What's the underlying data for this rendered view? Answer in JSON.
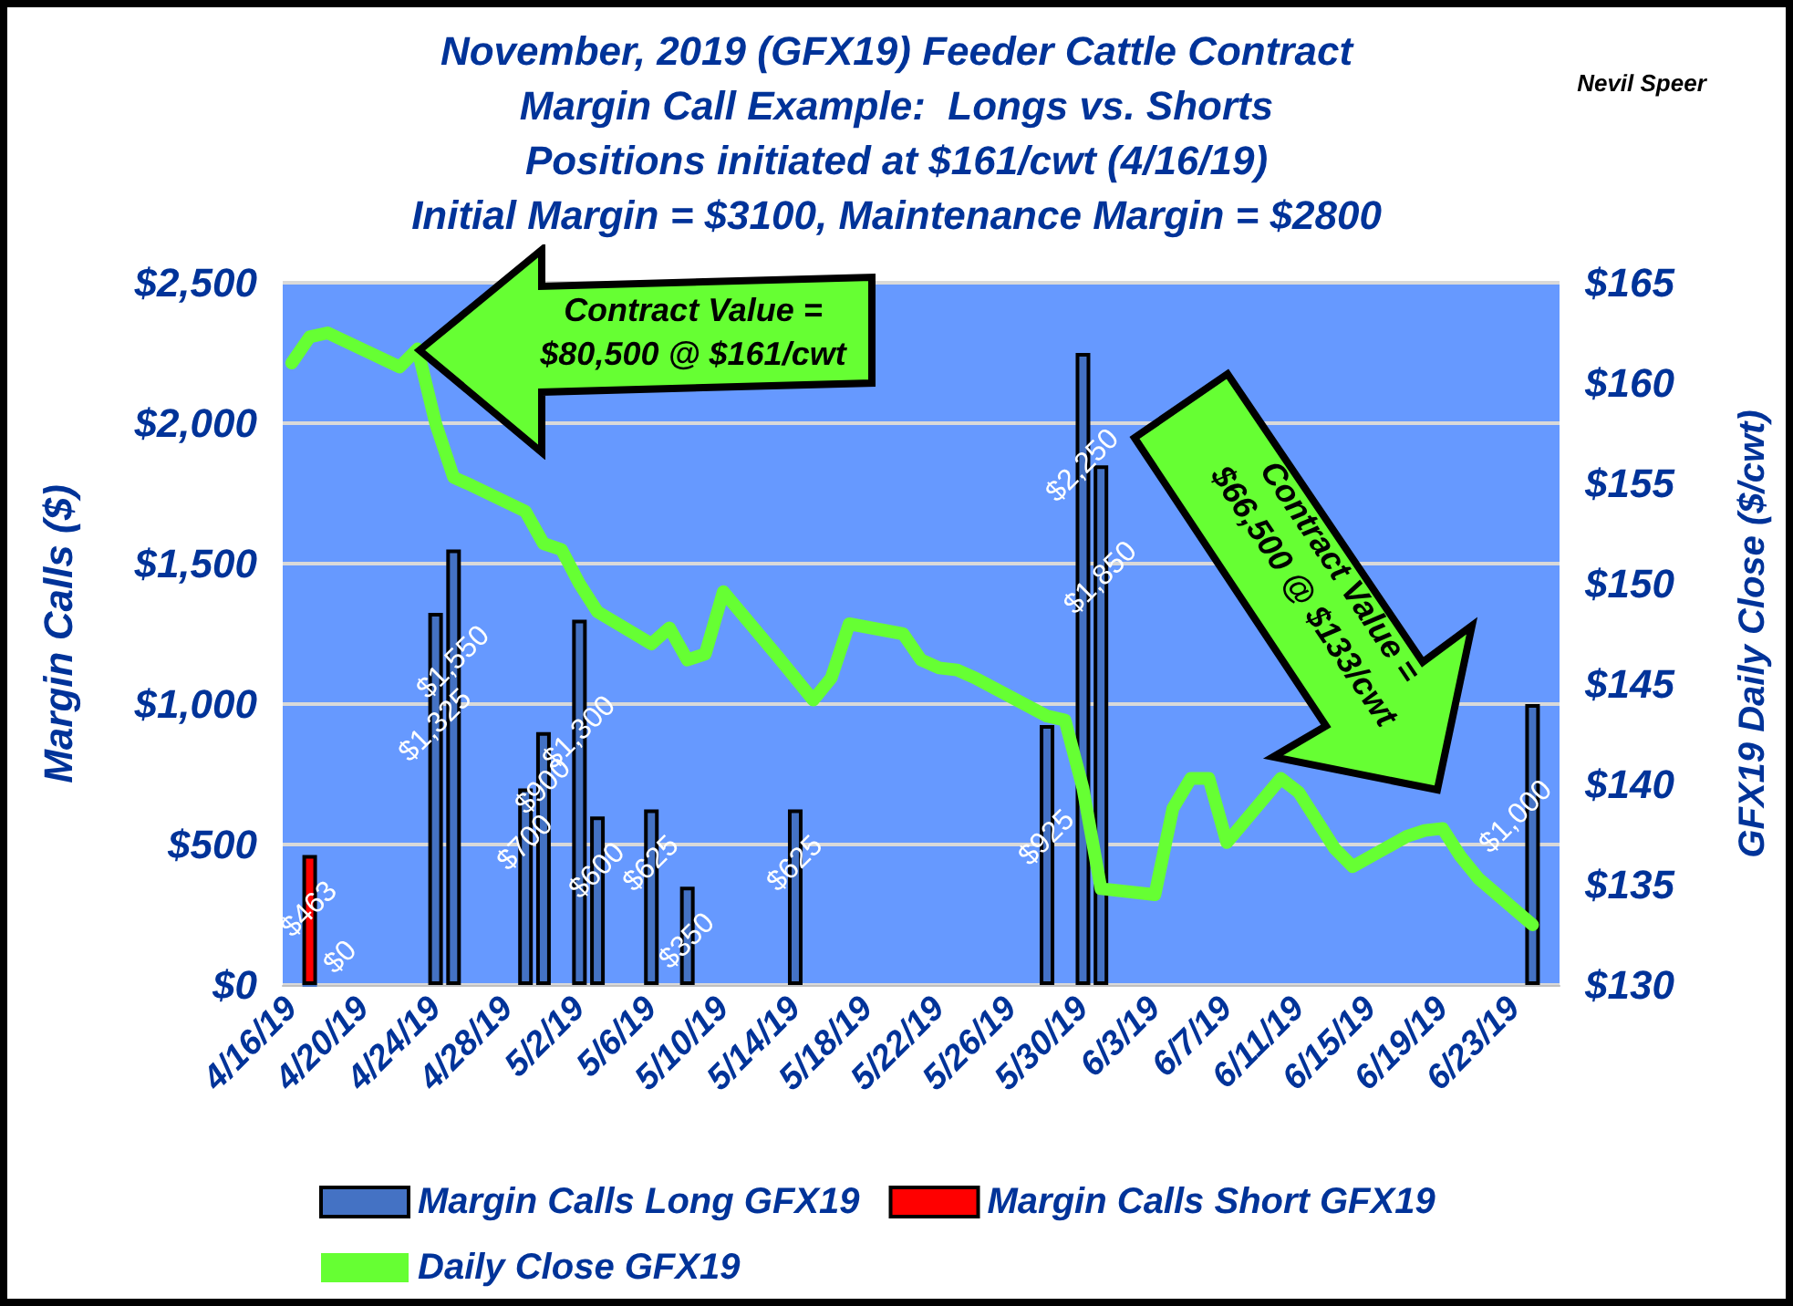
{
  "chart_data": {
    "type": "bar",
    "title": "November, 2019 (GFX19) Feeder Cattle Contract\nMargin Call Example:  Longs vs. Shorts\nPositions initiated at $161/cwt (4/16/19)\nInitial Margin = $3100, Maintenance Margin = $2800",
    "ylabel": "Margin Calls ($)",
    "y2label": "GFX19 Daily Close ($/cwt)",
    "annotations": [
      "Nevil Speer",
      "Contract Value =\n$80,500 @ $161/cwt",
      "Contract Value =\n$66,500 @ $133/cwt"
    ],
    "xlim": [
      "2019-04-15T12:00",
      "2019-06-25T12:00"
    ],
    "xticks": [
      {
        "value": "2019-04-16",
        "label": "4/16/19"
      },
      {
        "value": "2019-04-20",
        "label": "4/20/19"
      },
      {
        "value": "2019-04-24",
        "label": "4/24/19"
      },
      {
        "value": "2019-04-28",
        "label": "4/28/19"
      },
      {
        "value": "2019-05-02",
        "label": "5/2/19"
      },
      {
        "value": "2019-05-06",
        "label": "5/6/19"
      },
      {
        "value": "2019-05-10",
        "label": "5/10/19"
      },
      {
        "value": "2019-05-14",
        "label": "5/14/19"
      },
      {
        "value": "2019-05-18",
        "label": "5/18/19"
      },
      {
        "value": "2019-05-22",
        "label": "5/22/19"
      },
      {
        "value": "2019-05-26",
        "label": "5/26/19"
      },
      {
        "value": "2019-05-30",
        "label": "5/30/19"
      },
      {
        "value": "2019-06-03",
        "label": "6/3/19"
      },
      {
        "value": "2019-06-07",
        "label": "6/7/19"
      },
      {
        "value": "2019-06-11",
        "label": "6/11/19"
      },
      {
        "value": "2019-06-15",
        "label": "6/15/19"
      },
      {
        "value": "2019-06-19",
        "label": "6/19/19"
      },
      {
        "value": "2019-06-23",
        "label": "6/23/19"
      }
    ],
    "ylim": [
      0,
      2500
    ],
    "yticks": [
      {
        "value": 0,
        "label": "$0"
      },
      {
        "value": 500,
        "label": "$500"
      },
      {
        "value": 1000,
        "label": "$1,000"
      },
      {
        "value": 1500,
        "label": "$1,500"
      },
      {
        "value": 2000,
        "label": "$2,000"
      },
      {
        "value": 2500,
        "label": "$2,500"
      }
    ],
    "y2lim": [
      130,
      165
    ],
    "y2ticks": [
      {
        "value": 130,
        "label": "$130"
      },
      {
        "value": 135,
        "label": "$135"
      },
      {
        "value": 140,
        "label": "$140"
      },
      {
        "value": 145,
        "label": "$145"
      },
      {
        "value": 150,
        "label": "$150"
      },
      {
        "value": 155,
        "label": "$155"
      },
      {
        "value": 160,
        "label": "$160"
      },
      {
        "value": 165,
        "label": "$165"
      }
    ],
    "grid": "y",
    "legend": "bottom",
    "series": [
      {
        "name": "Margin Calls Long GFX19",
        "color": "#4472c4",
        "x": [
          "2019-04-17",
          "2019-04-24",
          "2019-04-25",
          "2019-04-29",
          "2019-04-30",
          "2019-05-02",
          "2019-05-03",
          "2019-05-06",
          "2019-05-08",
          "2019-05-14",
          "2019-05-28",
          "2019-05-30",
          "2019-05-31",
          "2019-06-24"
        ],
        "values": [
          0,
          1325,
          1550,
          700,
          900,
          1300,
          600,
          625,
          350,
          625,
          925,
          2250,
          1850,
          1000
        ],
        "value_labels": [
          "$0",
          "$1,325",
          "$1,550",
          "$700",
          "$900",
          "$1,300",
          "$600",
          "$625",
          "$350",
          "$625",
          "$925",
          "$2,250",
          "$1,850",
          "$1,000"
        ]
      },
      {
        "name": "Margin Calls Short GFX19",
        "color": "#ff0000",
        "x": [
          "2019-04-17"
        ],
        "values": [
          463
        ],
        "value_labels": [
          "$463"
        ]
      },
      {
        "name": "Daily Close GFX19",
        "type": "line",
        "axis": "y2",
        "color": "#66ff33",
        "marker": "none",
        "line_style": "solid",
        "x": [
          "2019-04-16",
          "2019-04-17",
          "2019-04-18",
          "2019-04-22",
          "2019-04-23",
          "2019-04-24",
          "2019-04-25",
          "2019-04-26",
          "2019-04-29",
          "2019-04-30",
          "2019-05-01",
          "2019-05-02",
          "2019-05-03",
          "2019-05-06",
          "2019-05-07",
          "2019-05-08",
          "2019-05-09",
          "2019-05-10",
          "2019-05-13",
          "2019-05-14",
          "2019-05-15",
          "2019-05-16",
          "2019-05-17",
          "2019-05-20",
          "2019-05-21",
          "2019-05-22",
          "2019-05-23",
          "2019-05-24",
          "2019-05-28",
          "2019-05-29",
          "2019-05-30",
          "2019-05-31",
          "2019-06-03",
          "2019-06-04",
          "2019-06-05",
          "2019-06-06",
          "2019-06-07",
          "2019-06-10",
          "2019-06-11",
          "2019-06-12",
          "2019-06-13",
          "2019-06-14",
          "2019-06-17",
          "2019-06-18",
          "2019-06-19",
          "2019-06-20",
          "2019-06-21",
          "2019-06-24"
        ],
        "values": [
          161,
          162.3,
          162.5,
          160.8,
          161.7,
          158.0,
          155.3,
          154.9,
          153.6,
          152.0,
          151.7,
          150.0,
          148.6,
          147.0,
          147.8,
          146.2,
          146.5,
          149.6,
          146.4,
          145.3,
          144.2,
          145.3,
          148.0,
          147.5,
          146.2,
          145.8,
          145.7,
          145.3,
          143.4,
          143.2,
          139.8,
          134.8,
          134.5,
          138.8,
          140.3,
          140.3,
          137.1,
          140.3,
          139.6,
          138.2,
          136.8,
          135.9,
          137.4,
          137.7,
          137.8,
          136.4,
          135.3,
          133.0
        ]
      }
    ]
  }
}
